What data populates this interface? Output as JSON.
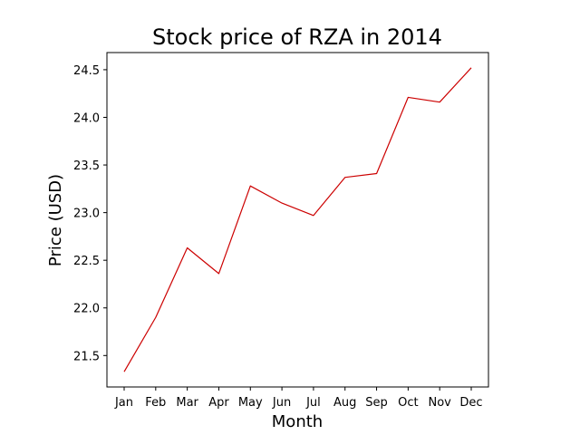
{
  "chart_data": {
    "type": "line",
    "title": "Stock price of RZA in 2014",
    "xlabel": "Month",
    "ylabel": "Price (USD)",
    "categories": [
      "Jan",
      "Feb",
      "Mar",
      "Apr",
      "May",
      "Jun",
      "Jul",
      "Aug",
      "Sep",
      "Oct",
      "Nov",
      "Dec"
    ],
    "series": [
      {
        "values": [
          21.33,
          21.9,
          22.63,
          22.36,
          23.28,
          23.1,
          22.97,
          23.37,
          23.41,
          24.21,
          24.16,
          24.52
        ],
        "color": "#cc0000"
      }
    ],
    "yticks": [
      21.5,
      22.0,
      22.5,
      23.0,
      23.5,
      24.0,
      24.5
    ],
    "ytick_labels": [
      "21.5",
      "22.0",
      "22.5",
      "23.0",
      "23.5",
      "24.0",
      "24.5"
    ],
    "ylim": [
      21.17,
      24.68
    ],
    "grid": false,
    "legend": "none"
  }
}
